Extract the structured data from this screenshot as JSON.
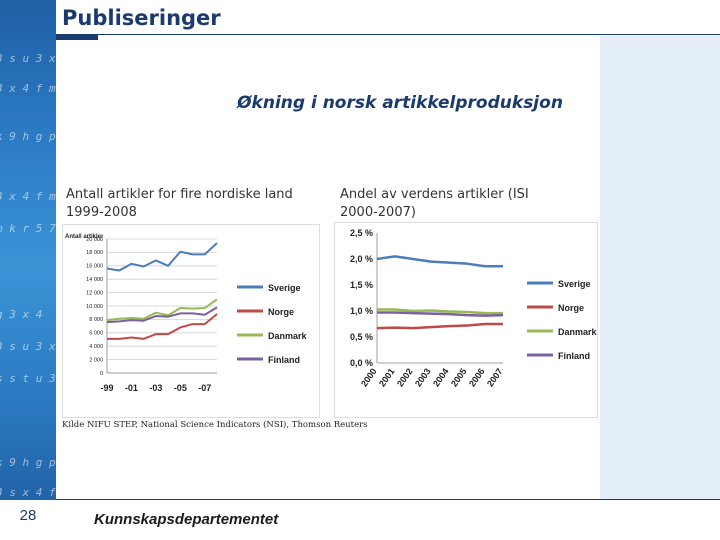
{
  "slide": {
    "title": "Publiseringer",
    "subtitle": "Økning i norsk artikkelproduksjon",
    "left_heading_line1": "Antall artikler for fire nordiske land",
    "left_heading_line2": "1999-2008",
    "right_heading_line1": "Andel av verdens artikler (ISI",
    "right_heading_line2": "2000-2007)",
    "source": "Kilde NIFU STEP, National Science Indicators (NSI), Thomson Reuters",
    "page_number": "28",
    "ministry": "Kunnskapsdepartementet",
    "strip_texts": [
      "3 s u 3 x 4",
      "3 x 4 f m k",
      "k 9 h g p 2",
      "3 x 4 f m k",
      "m k r 5 7 y",
      "g 3 x 4",
      "3 s u 3 x",
      "s s t u 3",
      "k 9 h g p 2",
      "3 s x 4 f m k"
    ]
  },
  "chart_data": [
    {
      "type": "line",
      "title": "",
      "ylabel": "Antall artikler",
      "xlabel": "",
      "ylim": [
        0,
        20000
      ],
      "yticks": [
        0,
        2000,
        4000,
        6000,
        8000,
        10000,
        12000,
        14000,
        16000,
        18000,
        20000
      ],
      "ytick_labels": [
        "0",
        "2 000",
        "4 000",
        "6 000",
        "8 000",
        "10 000",
        "12 000",
        "14 000",
        "16 000",
        "18 000",
        "20 000"
      ],
      "x": [
        1999,
        2000,
        2001,
        2002,
        2003,
        2004,
        2005,
        2006,
        2007,
        2008
      ],
      "xtick_labels": [
        "-99",
        "-01",
        "-03",
        "-05",
        "-07"
      ],
      "xtick_positions": [
        1999,
        2001,
        2003,
        2005,
        2007
      ],
      "grid": true,
      "legend": "right",
      "series": [
        {
          "name": "Sverige",
          "color": "#4a7ebb",
          "values": [
            15600,
            15300,
            16300,
            15900,
            16800,
            16000,
            18100,
            17700,
            17700,
            19400
          ]
        },
        {
          "name": "Norge",
          "color": "#be4b48",
          "values": [
            5100,
            5100,
            5300,
            5100,
            5800,
            5800,
            6800,
            7300,
            7300,
            8800
          ]
        },
        {
          "name": "Danmark",
          "color": "#98b954",
          "values": [
            7900,
            8100,
            8200,
            8100,
            9000,
            8600,
            9700,
            9600,
            9700,
            11000
          ]
        },
        {
          "name": "Finland",
          "color": "#7d60a0",
          "values": [
            7600,
            7700,
            7900,
            7800,
            8500,
            8400,
            8900,
            8900,
            8700,
            9800
          ]
        }
      ]
    },
    {
      "type": "line",
      "title": "",
      "xlabel": "",
      "ylabel": "",
      "ylim": [
        0,
        2.5
      ],
      "yticks": [
        0,
        0.5,
        1.0,
        1.5,
        2.0,
        2.5
      ],
      "ytick_labels": [
        "0,0 %",
        "0,5 %",
        "1,0 %",
        "1,5 %",
        "2,0 %",
        "2,5 %"
      ],
      "x": [
        2000,
        2001,
        2002,
        2003,
        2004,
        2005,
        2006,
        2007
      ],
      "xtick_labels": [
        "2000",
        "2001",
        "2002",
        "2003",
        "2004",
        "2005",
        "2006",
        "2007"
      ],
      "grid": false,
      "legend": "right",
      "series": [
        {
          "name": "Sverige",
          "color": "#4a7ebb",
          "values": [
            2.0,
            2.05,
            2.0,
            1.95,
            1.93,
            1.91,
            1.86,
            1.86
          ]
        },
        {
          "name": "Norge",
          "color": "#be4b48",
          "values": [
            0.67,
            0.68,
            0.67,
            0.69,
            0.71,
            0.72,
            0.75,
            0.75
          ]
        },
        {
          "name": "Danmark",
          "color": "#98b954",
          "values": [
            1.03,
            1.03,
            1.0,
            1.01,
            0.99,
            0.98,
            0.96,
            0.96
          ]
        },
        {
          "name": "Finland",
          "color": "#7d60a0",
          "values": [
            0.97,
            0.97,
            0.96,
            0.95,
            0.94,
            0.92,
            0.91,
            0.92
          ]
        }
      ]
    }
  ]
}
